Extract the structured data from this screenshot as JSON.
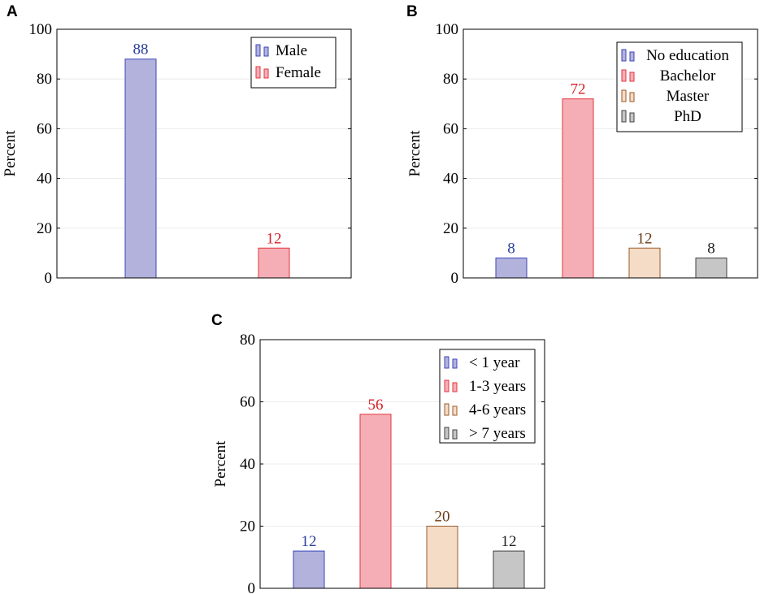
{
  "colors": {
    "blue_fill": "#b3b2dc",
    "blue_stroke": "#3a46b8",
    "blue_text": "#2a3f9a",
    "red_fill": "#f6aeb6",
    "red_stroke": "#e2363f",
    "red_text": "#d61f26",
    "tan_fill": "#f5dcc6",
    "tan_stroke": "#9a5a2a",
    "tan_text": "#6b3a12",
    "gray_fill": "#c6c6c6",
    "gray_stroke": "#404040",
    "gray_text": "#222222"
  },
  "chart_data": [
    {
      "panel": "A",
      "type": "bar",
      "ylabel": "Percent",
      "ylim": [
        0,
        100
      ],
      "yticks": [
        0,
        20,
        40,
        60,
        80,
        100
      ],
      "legend_position": "top-right",
      "series": [
        {
          "name": "Male",
          "value": 88,
          "color": "blue"
        },
        {
          "name": "Female",
          "value": 12,
          "color": "red"
        }
      ]
    },
    {
      "panel": "B",
      "type": "bar",
      "ylabel": "Percent",
      "ylim": [
        0,
        100
      ],
      "yticks": [
        0,
        20,
        40,
        60,
        80,
        100
      ],
      "legend_position": "top-right",
      "series": [
        {
          "name": "No education",
          "value": 8,
          "color": "blue"
        },
        {
          "name": "Bachelor",
          "value": 72,
          "color": "red"
        },
        {
          "name": "Master",
          "value": 12,
          "color": "tan"
        },
        {
          "name": "PhD",
          "value": 8,
          "color": "gray"
        }
      ]
    },
    {
      "panel": "C",
      "type": "bar",
      "ylabel": "Percent",
      "ylim": [
        0,
        80
      ],
      "yticks": [
        0,
        20,
        40,
        60,
        80
      ],
      "legend_position": "top-right",
      "series": [
        {
          "name": "< 1 year",
          "value": 12,
          "color": "blue"
        },
        {
          "name": "1-3 years",
          "value": 56,
          "color": "red"
        },
        {
          "name": "4-6 years",
          "value": 20,
          "color": "tan"
        },
        {
          "name": "> 7 years",
          "value": 12,
          "color": "gray"
        }
      ]
    }
  ]
}
